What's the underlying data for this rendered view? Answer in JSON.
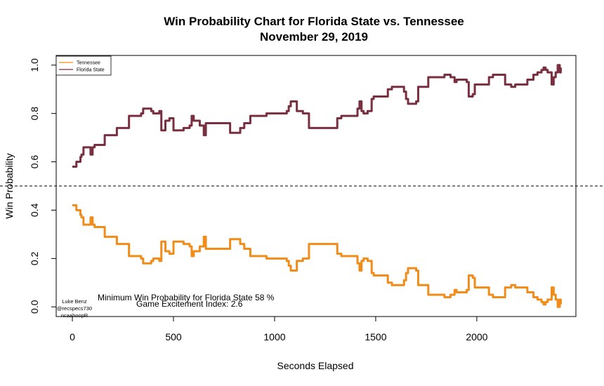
{
  "chart_data": {
    "type": "line",
    "title": "Win Probability Chart for Florida State vs. Tennessee",
    "subtitle": "November 29, 2019",
    "xlabel": "Seconds Elapsed",
    "ylabel": "Win Probability",
    "xlim": [
      -80,
      2490
    ],
    "ylim": [
      -0.04,
      1.04
    ],
    "x_ticks": [
      0,
      500,
      1000,
      1500,
      2000
    ],
    "y_ticks": [
      0.0,
      0.2,
      0.4,
      0.6,
      0.8,
      1.0
    ],
    "y_tick_labels": [
      "0.0",
      "0.2",
      "0.4",
      "0.6",
      "0.8",
      "1.0"
    ],
    "reference_line": 0.5,
    "legend_position": "top-left",
    "grid": false,
    "series": [
      {
        "name": "Tennessee",
        "color": "#f08c1a",
        "x": [
          0,
          20,
          40,
          45,
          55,
          80,
          90,
          100,
          110,
          120,
          150,
          160,
          200,
          220,
          270,
          280,
          320,
          340,
          350,
          390,
          400,
          430,
          440,
          460,
          480,
          500,
          540,
          550,
          560,
          580,
          590,
          600,
          630,
          650,
          660,
          700,
          740,
          770,
          780,
          820,
          830,
          840,
          850,
          870,
          880,
          950,
          960,
          1000,
          1010,
          1050,
          1060,
          1070,
          1080,
          1100,
          1110,
          1140,
          1170,
          1180,
          1200,
          1300,
          1310,
          1320,
          1330,
          1400,
          1410,
          1420,
          1430,
          1440,
          1450,
          1460,
          1480,
          1490,
          1500,
          1560,
          1580,
          1600,
          1620,
          1640,
          1650,
          1660,
          1700,
          1710,
          1750,
          1760,
          1770,
          1820,
          1840,
          1870,
          1890,
          1900,
          1950,
          1960,
          1980,
          1990,
          2000,
          2060,
          2080,
          2120,
          2140,
          2170,
          2190,
          2200,
          2250,
          2280,
          2300,
          2320,
          2330,
          2340,
          2350,
          2370,
          2380,
          2390,
          2400,
          2410,
          2415
        ],
        "values": [
          0.42,
          0.4,
          0.38,
          0.37,
          0.34,
          0.34,
          0.37,
          0.34,
          0.33,
          0.33,
          0.33,
          0.29,
          0.29,
          0.26,
          0.26,
          0.21,
          0.21,
          0.2,
          0.18,
          0.19,
          0.2,
          0.19,
          0.27,
          0.23,
          0.22,
          0.27,
          0.27,
          0.26,
          0.26,
          0.25,
          0.21,
          0.23,
          0.25,
          0.29,
          0.24,
          0.24,
          0.24,
          0.24,
          0.28,
          0.28,
          0.26,
          0.26,
          0.24,
          0.24,
          0.21,
          0.21,
          0.2,
          0.2,
          0.2,
          0.2,
          0.19,
          0.17,
          0.15,
          0.15,
          0.19,
          0.2,
          0.26,
          0.26,
          0.26,
          0.26,
          0.22,
          0.22,
          0.21,
          0.21,
          0.18,
          0.15,
          0.19,
          0.2,
          0.2,
          0.19,
          0.14,
          0.13,
          0.13,
          0.1,
          0.09,
          0.09,
          0.09,
          0.11,
          0.14,
          0.16,
          0.15,
          0.09,
          0.09,
          0.05,
          0.05,
          0.05,
          0.04,
          0.05,
          0.07,
          0.06,
          0.07,
          0.13,
          0.12,
          0.08,
          0.08,
          0.05,
          0.04,
          0.04,
          0.08,
          0.09,
          0.08,
          0.08,
          0.06,
          0.04,
          0.03,
          0.02,
          0.01,
          0.02,
          0.03,
          0.08,
          0.05,
          0.03,
          0.0,
          0.03,
          0.01
        ]
      },
      {
        "name": "Florida State",
        "color": "#782f40",
        "x": [
          0,
          20,
          40,
          45,
          55,
          80,
          90,
          100,
          110,
          120,
          150,
          160,
          200,
          220,
          270,
          280,
          320,
          340,
          350,
          390,
          400,
          430,
          440,
          460,
          480,
          500,
          540,
          550,
          560,
          580,
          590,
          600,
          630,
          650,
          660,
          700,
          740,
          770,
          780,
          820,
          830,
          840,
          850,
          870,
          880,
          950,
          960,
          1000,
          1010,
          1050,
          1060,
          1070,
          1080,
          1100,
          1110,
          1140,
          1170,
          1180,
          1200,
          1300,
          1310,
          1320,
          1330,
          1400,
          1410,
          1420,
          1430,
          1440,
          1450,
          1460,
          1480,
          1490,
          1500,
          1560,
          1580,
          1600,
          1620,
          1640,
          1650,
          1660,
          1700,
          1710,
          1750,
          1760,
          1770,
          1820,
          1840,
          1870,
          1890,
          1900,
          1950,
          1960,
          1980,
          1990,
          2000,
          2060,
          2080,
          2120,
          2140,
          2170,
          2190,
          2200,
          2250,
          2280,
          2300,
          2320,
          2330,
          2340,
          2350,
          2370,
          2380,
          2390,
          2400,
          2410,
          2415
        ],
        "values": [
          0.58,
          0.6,
          0.62,
          0.63,
          0.66,
          0.66,
          0.63,
          0.66,
          0.67,
          0.67,
          0.67,
          0.71,
          0.71,
          0.74,
          0.74,
          0.79,
          0.79,
          0.8,
          0.82,
          0.81,
          0.8,
          0.81,
          0.73,
          0.77,
          0.78,
          0.73,
          0.73,
          0.74,
          0.74,
          0.75,
          0.79,
          0.77,
          0.75,
          0.71,
          0.76,
          0.76,
          0.76,
          0.76,
          0.72,
          0.72,
          0.74,
          0.74,
          0.76,
          0.76,
          0.79,
          0.79,
          0.8,
          0.8,
          0.8,
          0.8,
          0.81,
          0.83,
          0.85,
          0.85,
          0.81,
          0.8,
          0.74,
          0.74,
          0.74,
          0.74,
          0.78,
          0.78,
          0.79,
          0.79,
          0.82,
          0.85,
          0.81,
          0.8,
          0.8,
          0.81,
          0.86,
          0.87,
          0.87,
          0.9,
          0.91,
          0.91,
          0.91,
          0.89,
          0.86,
          0.84,
          0.85,
          0.91,
          0.91,
          0.95,
          0.95,
          0.95,
          0.96,
          0.95,
          0.93,
          0.94,
          0.93,
          0.87,
          0.88,
          0.92,
          0.92,
          0.95,
          0.96,
          0.96,
          0.92,
          0.91,
          0.92,
          0.92,
          0.94,
          0.96,
          0.97,
          0.98,
          0.99,
          0.98,
          0.97,
          0.92,
          0.95,
          0.97,
          1.0,
          0.97,
          0.99
        ]
      }
    ],
    "annotations": {
      "min_win_prob": "Minimum Win Probability for Florida State 58 %",
      "excitement": "Game Excitement Index: 2.6"
    },
    "credits": [
      "Luke Benz",
      "@recspecs730",
      "ncaahoopR"
    ]
  }
}
